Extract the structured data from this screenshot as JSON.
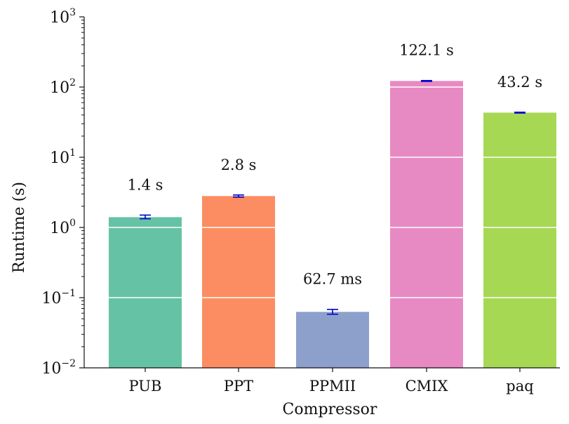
{
  "chart_data": {
    "type": "bar",
    "title": "",
    "xlabel": "Compressor",
    "ylabel": "Runtime (s)",
    "y_scale": "log",
    "ylim": [
      0.01,
      1000
    ],
    "y_ticks": [
      {
        "value": 0.01,
        "base": "10",
        "exp": "−2"
      },
      {
        "value": 0.1,
        "base": "10",
        "exp": "−1"
      },
      {
        "value": 1,
        "base": "10",
        "exp": "0"
      },
      {
        "value": 10,
        "base": "10",
        "exp": "1"
      },
      {
        "value": 100,
        "base": "10",
        "exp": "2"
      },
      {
        "value": 1000,
        "base": "10",
        "exp": "3"
      }
    ],
    "gridlines_inside_bars": true,
    "categories": [
      "PUB",
      "PPT",
      "PPMII",
      "CMIX",
      "paq"
    ],
    "values": [
      1.4,
      2.8,
      0.0627,
      122.1,
      43.2
    ],
    "error_low": [
      1.33,
      2.7,
      0.058,
      120.5,
      42.6
    ],
    "error_high": [
      1.5,
      2.9,
      0.068,
      123.8,
      43.8
    ],
    "data_labels": [
      "1.4 s",
      "2.8 s",
      "62.7 ms",
      "122.1 s",
      "43.2 s"
    ],
    "colors": [
      "#66c2a5",
      "#fc8d62",
      "#8da0cb",
      "#e78ac3",
      "#a6d854"
    ],
    "error_bar_color": "#0000cc",
    "gridline_color": "#ffffff"
  }
}
